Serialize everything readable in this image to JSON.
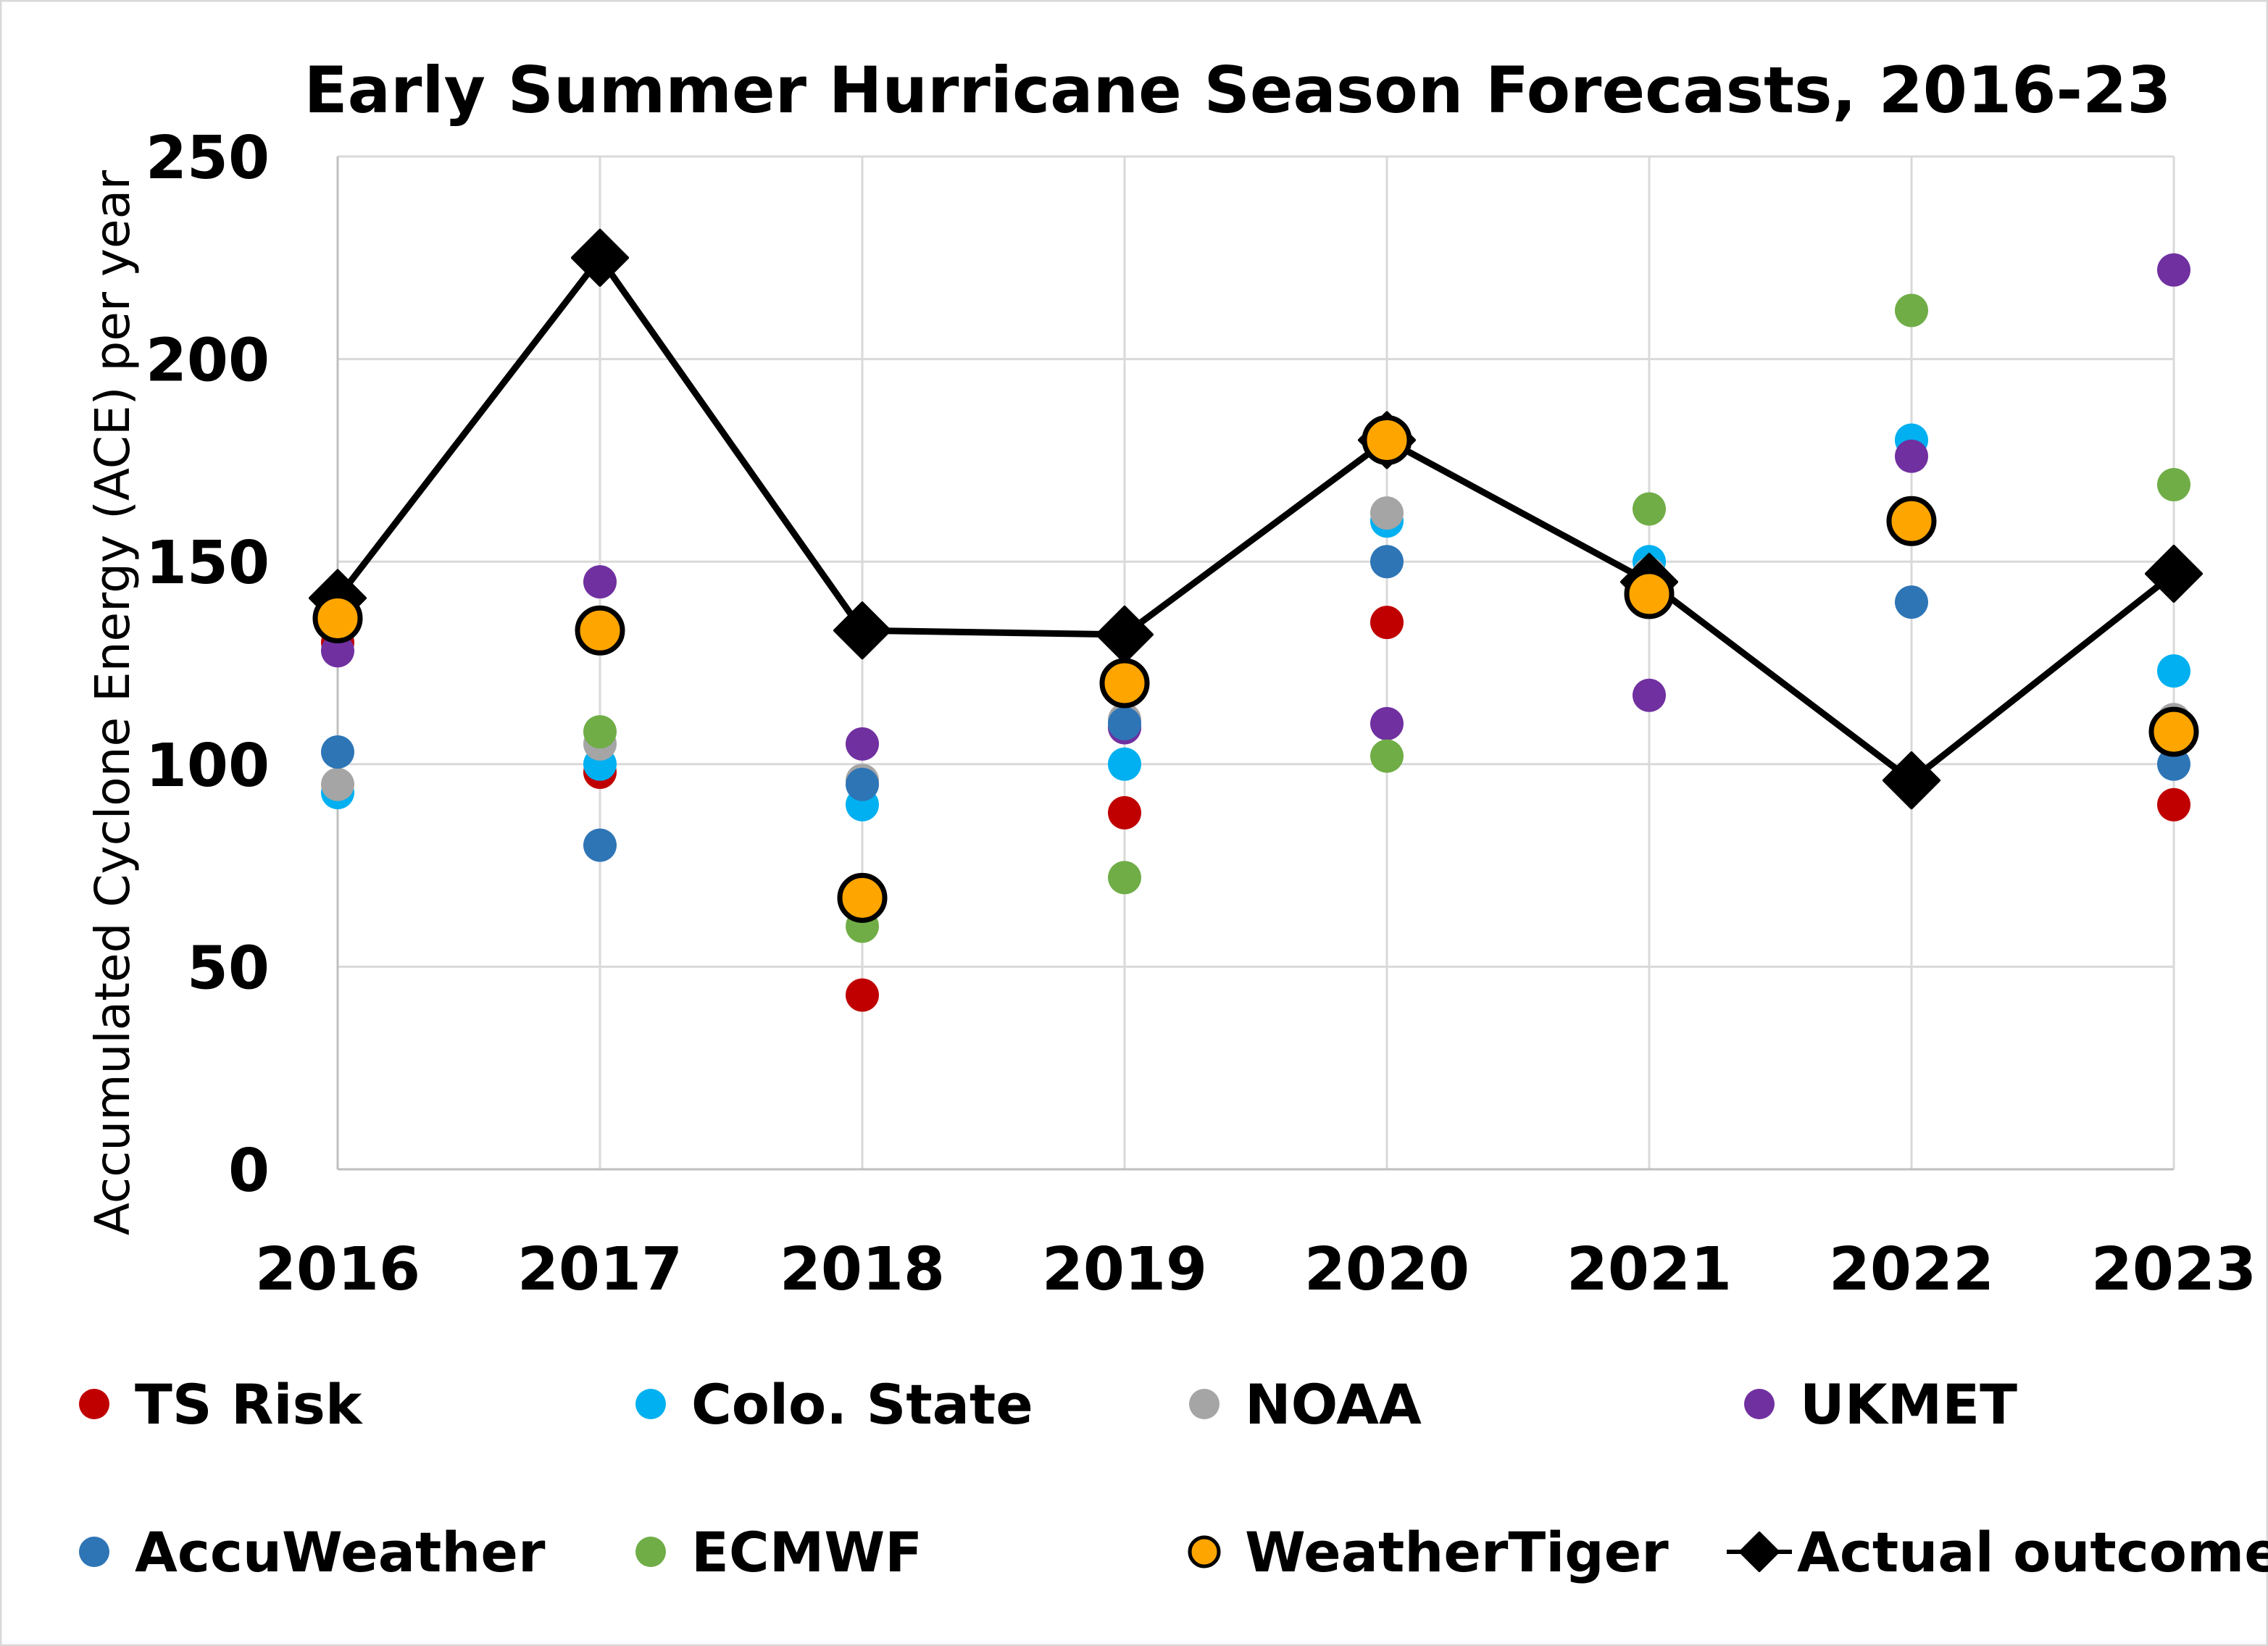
{
  "chart_data": {
    "type": "scatter",
    "title": "Early Summer Hurricane Season Forecasts, 2016-23",
    "xlabel": "",
    "ylabel": "Accumulated Cyclone Energy (ACE) per year",
    "ylim": [
      0,
      250
    ],
    "yticks": [
      0,
      50,
      100,
      150,
      200,
      250
    ],
    "grid": true,
    "legend_position": "bottom",
    "categories": [
      "2016",
      "2017",
      "2018",
      "2019",
      "2020",
      "2021",
      "2022",
      "2023"
    ],
    "series": [
      {
        "name": "TS Risk",
        "color": "#C00000",
        "marker": "circle",
        "values": [
          130,
          98,
          43,
          88,
          135,
          null,
          null,
          90
        ]
      },
      {
        "name": "Colo. State",
        "color": "#00B0F0",
        "marker": "circle",
        "values": [
          93,
          100,
          90,
          100,
          160,
          150,
          180,
          123
        ]
      },
      {
        "name": "NOAA",
        "color": "#A5A5A5",
        "marker": "circle",
        "values": [
          95,
          105,
          96,
          111,
          162,
          147,
          158,
          111
        ]
      },
      {
        "name": "UKMET",
        "color": "#7030A0",
        "marker": "circle",
        "values": [
          128,
          145,
          105,
          109,
          110,
          117,
          176,
          222
        ]
      },
      {
        "name": "AccuWeather",
        "color": "#2E75B6",
        "marker": "circle",
        "values": [
          103,
          80,
          95,
          110,
          150,
          140,
          140,
          100
        ]
      },
      {
        "name": "ECMWF",
        "color": "#70AD47",
        "marker": "circle",
        "values": [
          null,
          108,
          60,
          72,
          102,
          163,
          212,
          169
        ]
      },
      {
        "name": "Actual outcome",
        "color": "#000000",
        "marker": "diamond-line",
        "values": [
          141,
          225,
          133,
          132,
          180,
          145,
          96,
          147
        ]
      },
      {
        "name": "WeatherTiger",
        "color": "#FFA500",
        "marker": "circle-outlined",
        "values": [
          136,
          133,
          67,
          120,
          180,
          142,
          160,
          108
        ]
      }
    ],
    "legend_order": [
      "TS Risk",
      "Colo. State",
      "NOAA",
      "UKMET",
      "AccuWeather",
      "ECMWF",
      "WeatherTiger",
      "Actual outcome"
    ]
  }
}
